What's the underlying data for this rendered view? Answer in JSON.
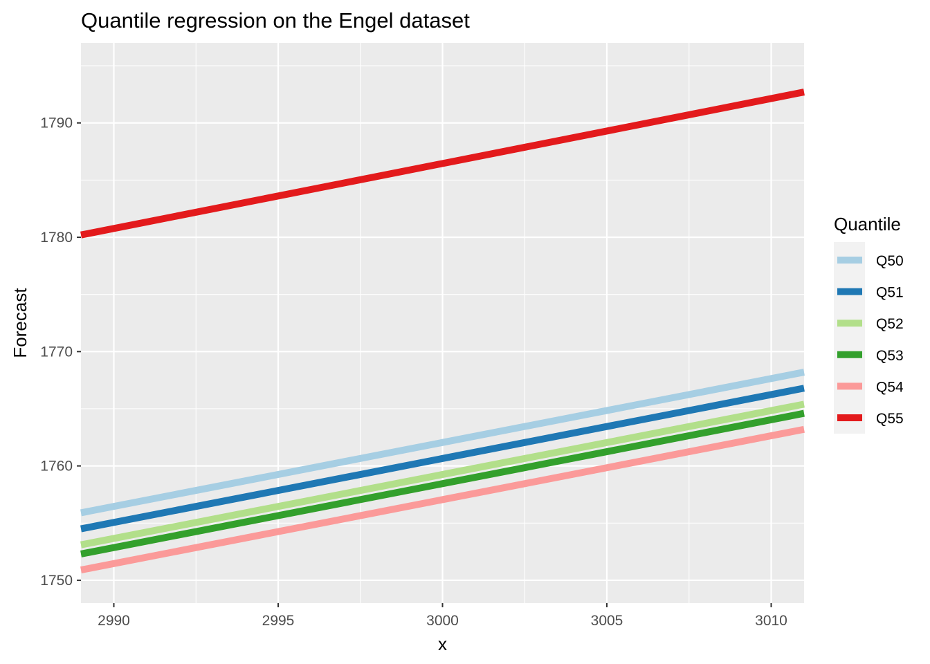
{
  "chart_data": {
    "type": "line",
    "title": "Quantile regression on the Engel dataset",
    "xlabel": "x",
    "ylabel": "Forecast",
    "xlim": [
      2989,
      3011
    ],
    "ylim": [
      1748,
      1797
    ],
    "x_ticks": [
      2990,
      2995,
      3000,
      3005,
      3010
    ],
    "y_ticks": [
      1750,
      1760,
      1770,
      1780,
      1790
    ],
    "grid": true,
    "legend": {
      "title": "Quantile",
      "position": "right"
    },
    "x": [
      2989,
      3011
    ],
    "series": [
      {
        "name": "Q50",
        "color": "#a6cee3",
        "values": [
          1755.9,
          1768.2
        ]
      },
      {
        "name": "Q51",
        "color": "#1f78b4",
        "values": [
          1754.5,
          1766.8
        ]
      },
      {
        "name": "Q52",
        "color": "#b2df8a",
        "values": [
          1753.1,
          1765.4
        ]
      },
      {
        "name": "Q53",
        "color": "#33a02c",
        "values": [
          1752.3,
          1764.6
        ]
      },
      {
        "name": "Q54",
        "color": "#fb9a99",
        "values": [
          1750.9,
          1763.2
        ]
      },
      {
        "name": "Q55",
        "color": "#e31a1c",
        "values": [
          1780.2,
          1792.7
        ]
      }
    ]
  }
}
